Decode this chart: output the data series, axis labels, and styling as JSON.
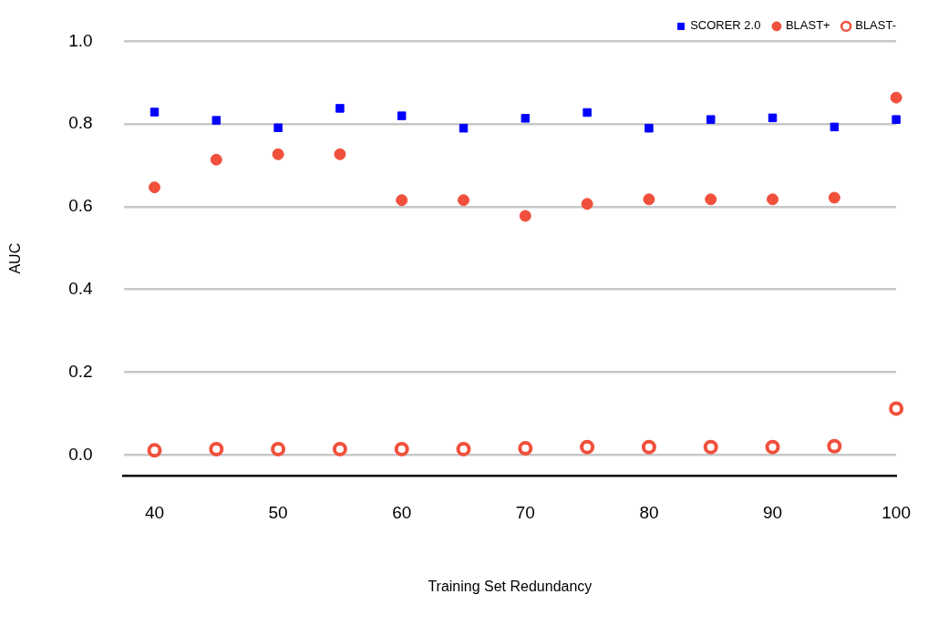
{
  "chart_data": {
    "type": "scatter",
    "xlabel": "Training Set Redundancy",
    "ylabel": "AUC",
    "x": [
      40,
      45,
      50,
      55,
      60,
      65,
      70,
      75,
      80,
      85,
      90,
      95,
      100
    ],
    "series": [
      {
        "name": "SCORER 2.0",
        "color": "#0000ff",
        "marker": "square",
        "values": [
          0.829,
          0.809,
          0.791,
          0.838,
          0.82,
          0.79,
          0.814,
          0.828,
          0.79,
          0.811,
          0.815,
          0.793,
          0.811
        ]
      },
      {
        "name": "BLAST+",
        "color": "#f0503c",
        "marker": "circle",
        "values": [
          0.647,
          0.714,
          0.727,
          0.727,
          0.616,
          0.616,
          0.578,
          0.607,
          0.618,
          0.618,
          0.618,
          0.622,
          0.864
        ]
      },
      {
        "name": "BLAST-",
        "color": "#f0503c",
        "marker": "circle-open",
        "values": [
          0.011,
          0.014,
          0.014,
          0.014,
          0.014,
          0.014,
          0.016,
          0.019,
          0.019,
          0.019,
          0.019,
          0.021,
          0.112
        ]
      }
    ],
    "xlim": [
      37.5,
      100
    ],
    "xticks": [
      40,
      50,
      60,
      70,
      80,
      90,
      100
    ],
    "ylim": [
      -0.05,
      1.0
    ],
    "yticks": [
      {
        "value": 0,
        "label": "0.0"
      },
      0.2,
      0.4,
      0.6,
      0.8,
      {
        "value": 1,
        "label": "1.0"
      }
    ],
    "grid": "y",
    "legend": "top right"
  }
}
